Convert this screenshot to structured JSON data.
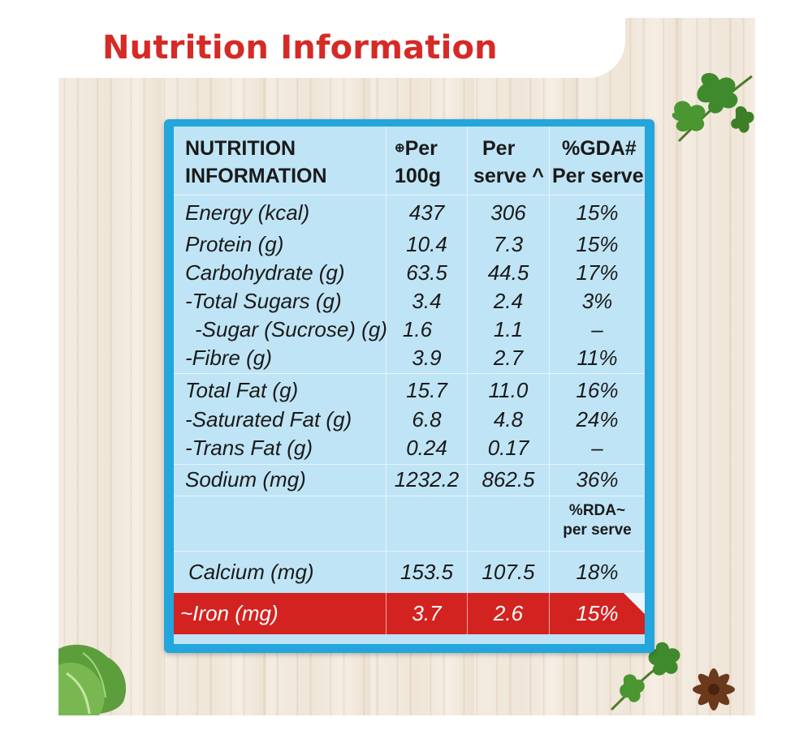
{
  "title": "Nutrition Information",
  "colors": {
    "title": "#d52a26",
    "frame": "#23a6dc",
    "table_bg": "#bfe4f5",
    "iron_row": "#d32320"
  },
  "table": {
    "header": {
      "col1_line1": "NUTRITION",
      "col1_line2": "INFORMATION",
      "col2_mark": "⊕",
      "col2_line1": "Per",
      "col2_line2": "100g",
      "col3_line1": "Per",
      "col3_line2": "serve ^",
      "col4_line1": "%GDA#",
      "col4_line2": "Per serve"
    },
    "rows": [
      {
        "label": "Energy (kcal)",
        "per100": "437",
        "serve": "306",
        "pct": "15%"
      },
      {
        "label": "Protein (g)",
        "per100": "10.4",
        "serve": "7.3",
        "pct": "15%"
      },
      {
        "label": "Carbohydrate (g)",
        "per100": "63.5",
        "serve": "44.5",
        "pct": "17%"
      },
      {
        "label": "-Total Sugars (g)",
        "per100": "3.4",
        "serve": "2.4",
        "pct": "3%"
      },
      {
        "label": "-Sugar (Sucrose) (g)",
        "per100": "1.6",
        "serve": "1.1",
        "pct": "–"
      },
      {
        "label": "-Fibre (g)",
        "per100": "3.9",
        "serve": "2.7",
        "pct": "11%"
      },
      {
        "label": "Total Fat (g)",
        "per100": "15.7",
        "serve": "11.0",
        "pct": "16%"
      },
      {
        "label": "-Saturated Fat (g)",
        "per100": "6.8",
        "serve": "4.8",
        "pct": "24%"
      },
      {
        "label": "-Trans Fat (g)",
        "per100": "0.24",
        "serve": "0.17",
        "pct": "–"
      },
      {
        "label": "Sodium (mg)",
        "per100": "1232.2",
        "serve": "862.5",
        "pct": "36%"
      }
    ],
    "rda_header_line1": "%RDA~",
    "rda_header_line2": "per serve",
    "calcium": {
      "label": "Calcium (mg)",
      "per100": "153.5",
      "serve": "107.5",
      "pct": "18%"
    },
    "iron": {
      "label": "~Iron (mg)",
      "per100": "3.7",
      "serve": "2.6",
      "pct": "15%"
    }
  },
  "decor": {
    "icons": [
      "parsley-icon",
      "lettuce-icon",
      "star-anise-icon"
    ]
  }
}
